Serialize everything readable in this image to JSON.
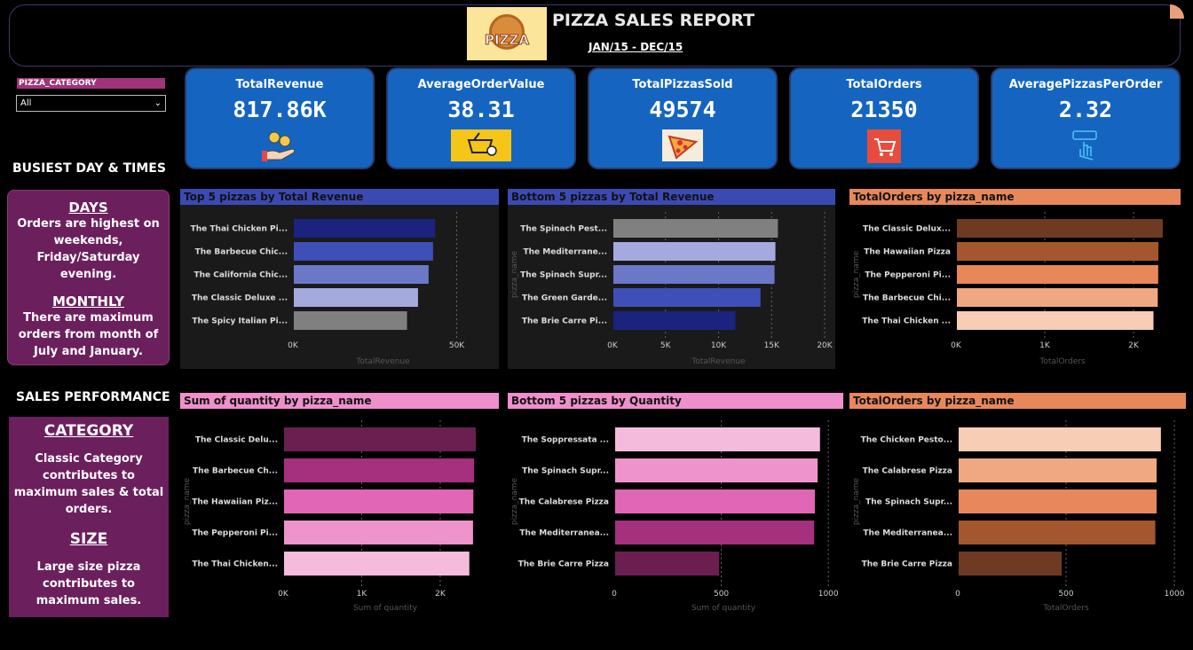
{
  "header": {
    "logo_text": "PIZZA",
    "title": "PIZZA SALES REPORT",
    "subtitle": "JAN/15 - DEC/15"
  },
  "slicer": {
    "label": "PIZZA_CATEGORY",
    "value": "All"
  },
  "kpis": [
    {
      "title": "TotalRevenue",
      "value": "817.86K",
      "icon": "money-hand-icon"
    },
    {
      "title": "AverageOrderValue",
      "value": "38.31",
      "icon": "basket-icon"
    },
    {
      "title": "TotalPizzasSold",
      "value": "49574",
      "icon": "pizza-slice-icon"
    },
    {
      "title": "TotalOrders",
      "value": "21350",
      "icon": "cart-icon"
    },
    {
      "title": "AveragePizzasPerOrder",
      "value": "2.32",
      "icon": "order-click-icon"
    }
  ],
  "sections": {
    "busiest": "BUSIEST DAY & TIMES",
    "sales": "SALES  PERFORMANCE"
  },
  "insights": {
    "days_head": "DAYS",
    "days_body": "Orders are highest on weekends, Friday/Saturday evening.",
    "monthly_head": "MONTHLY",
    "monthly_body": "There are maximum orders from month of July and January.",
    "category_head": "CATEGORY",
    "category_body": "Classic Category contributes to maximum sales & total orders.",
    "size_head": "SIZE",
    "size_body": "Large size pizza contributes to maximum sales."
  },
  "chart_data": [
    {
      "type": "bar",
      "orientation": "horizontal",
      "title": "Top 5 pizzas by Total Revenue",
      "title_bg": "#3b4ab3",
      "panel_bg": "#1a1a1a",
      "categories": [
        "The Thai Chicken Pi...",
        "The Barbecue Chic...",
        "The California Chic...",
        "The Classic Deluxe ...",
        "The Spicy Italian Pi..."
      ],
      "values": [
        43434,
        42768,
        41410,
        38181,
        34831
      ],
      "colors": [
        "#1a237e",
        "#3f4fb8",
        "#6b78c8",
        "#a4aade",
        "#808080"
      ],
      "xlim": [
        0,
        55000
      ],
      "ticks": [
        0,
        50000
      ],
      "tick_labels": [
        "0K",
        "50K"
      ],
      "xlabel": "TotalRevenue",
      "ylabel": ""
    },
    {
      "type": "bar",
      "orientation": "horizontal",
      "title": "Bottom 5 pizzas by Total Revenue",
      "title_bg": "#3b4ab3",
      "panel_bg": "#1a1a1a",
      "categories": [
        "The Spinach Pest...",
        "The Mediterrane...",
        "The Spinach Supr...",
        "The Green Garde...",
        "The Brie Carre Pi..."
      ],
      "values": [
        15596,
        15360,
        15278,
        13956,
        11588
      ],
      "colors": [
        "#808080",
        "#a4aade",
        "#6b78c8",
        "#3f4fb8",
        "#1a237e"
      ],
      "xlim": [
        0,
        20000
      ],
      "ticks": [
        0,
        5000,
        10000,
        15000,
        20000
      ],
      "tick_labels": [
        "0K",
        "5K",
        "10K",
        "15K",
        "20K"
      ],
      "xlabel": "TotalRevenue",
      "ylabel": "pizza_name"
    },
    {
      "type": "bar",
      "orientation": "horizontal",
      "title": "TotalOrders by pizza_name",
      "title_bg": "#e8885a",
      "panel_bg": "#000000",
      "categories": [
        "The Classic Delux...",
        "The Hawaiian Pizza",
        "The Pepperoni Pi...",
        "The Barbecue Chi...",
        "The Thai Chicken ..."
      ],
      "values": [
        2329,
        2280,
        2278,
        2273,
        2225
      ],
      "colors": [
        "#6e3a22",
        "#a4562e",
        "#e8885a",
        "#f0a882",
        "#f7cdb5"
      ],
      "xlim": [
        0,
        2400
      ],
      "ticks": [
        0,
        1000,
        2000
      ],
      "tick_labels": [
        "0K",
        "1K",
        "2K"
      ],
      "xlabel": "TotalOrders",
      "ylabel": "pizza_name"
    },
    {
      "type": "bar",
      "orientation": "horizontal",
      "title": "Sum of quantity by pizza_name",
      "title_bg": "#ef8fcc",
      "panel_bg": "#000000",
      "categories": [
        "The Classic Delu...",
        "The Barbecue Ch...",
        "The Hawaiian Piz...",
        "The Pepperoni Pi...",
        "The Thai Chicken..."
      ],
      "values": [
        2453,
        2432,
        2422,
        2418,
        2371
      ],
      "colors": [
        "#6b1f50",
        "#a5307d",
        "#e266b6",
        "#ef93cc",
        "#f4bbdd"
      ],
      "xlim": [
        0,
        2600
      ],
      "ticks": [
        0,
        1000,
        2000
      ],
      "tick_labels": [
        "0K",
        "1K",
        "2K"
      ],
      "xlabel": "Sum of quantity",
      "ylabel": "pizza_name"
    },
    {
      "type": "bar",
      "orientation": "horizontal",
      "title": "Bottom 5 pizzas by Quantity",
      "title_bg": "#ef8fcc",
      "panel_bg": "#000000",
      "categories": [
        "The Soppressata ...",
        "The Spinach Supr...",
        "The Calabrese Pizza",
        "The Mediterranea...",
        "The Brie Carre Pizza"
      ],
      "values": [
        961,
        950,
        937,
        934,
        490
      ],
      "colors": [
        "#f4bbdd",
        "#ef93cc",
        "#e266b6",
        "#a5307d",
        "#6b1f50"
      ],
      "xlim": [
        0,
        1020
      ],
      "ticks": [
        0,
        500,
        1000
      ],
      "tick_labels": [
        "0",
        "500",
        "1000"
      ],
      "xlabel": "Sum of quantity",
      "ylabel": "pizza_name"
    },
    {
      "type": "bar",
      "orientation": "horizontal",
      "title": "TotalOrders by pizza_name",
      "title_bg": "#e8885a",
      "panel_bg": "#000000",
      "categories": [
        "The Chicken Pesto...",
        "The Calabrese Pizza",
        "The Spinach Supr...",
        "The Mediterranea...",
        "The Brie Carre Pizza"
      ],
      "values": [
        938,
        918,
        918,
        912,
        480
      ],
      "colors": [
        "#f7cdb5",
        "#f0a882",
        "#e8885a",
        "#a4562e",
        "#6e3a22"
      ],
      "xlim": [
        0,
        1000
      ],
      "ticks": [
        0,
        500,
        1000
      ],
      "tick_labels": [
        "0",
        "500",
        "1000"
      ],
      "xlabel": "TotalOrders",
      "ylabel": "pizza_name"
    }
  ]
}
